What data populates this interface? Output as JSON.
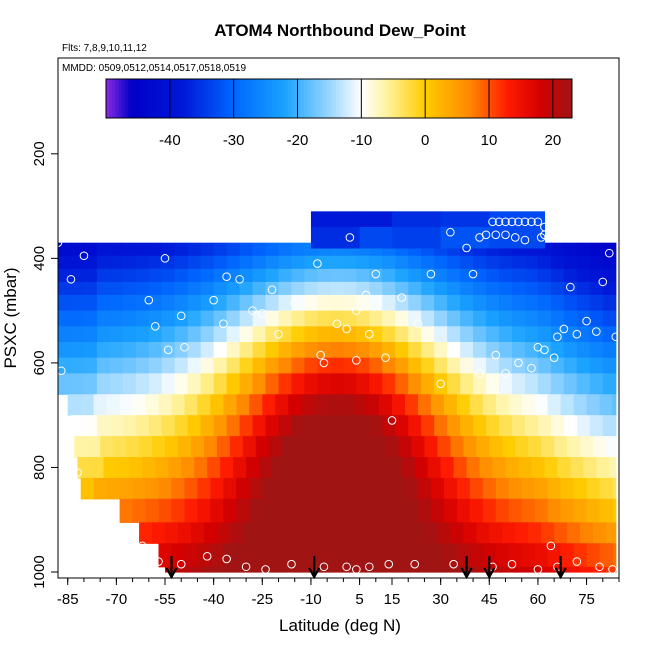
{
  "chart_data": {
    "type": "heatmap",
    "title": "ATOM4 Northbound Dew_Point",
    "flights_note": "Flts: 7,8,9,10,11,12",
    "dates_note": "MMDD: 0509,0512,0514,0517,0518,0519",
    "xlabel": "Latitude (deg N)",
    "ylabel": "PSXC (mbar)",
    "xlim": [
      -88,
      85
    ],
    "ylim": [
      1000,
      0
    ],
    "x_ticks": [
      "-85",
      "-70",
      "-55",
      "-40",
      "-25",
      "-10",
      "5",
      "15",
      "30",
      "45",
      "60",
      "75"
    ],
    "x_tick_values": [
      -85,
      -70,
      -55,
      -40,
      -25,
      -10,
      5,
      15,
      30,
      45,
      60,
      75
    ],
    "x_minor_step": 5,
    "y_ticks": [
      "200",
      "400",
      "600",
      "800",
      "1000"
    ],
    "y_tick_values": [
      200,
      400,
      600,
      800,
      1000
    ],
    "colorbar": {
      "min": -50,
      "max": 23,
      "ticks": [
        "-40",
        "-30",
        "-20",
        "-10",
        "0",
        "10",
        "20"
      ],
      "tick_values": [
        -40,
        -30,
        -20,
        -10,
        0,
        10,
        20
      ],
      "stops": [
        {
          "v": -50,
          "c": "#8a2be2"
        },
        {
          "v": -46,
          "c": "#0000c8"
        },
        {
          "v": -38,
          "c": "#0018d8"
        },
        {
          "v": -30,
          "c": "#0066ff"
        },
        {
          "v": -22,
          "c": "#1aa3ff"
        },
        {
          "v": -15,
          "c": "#99d6ff"
        },
        {
          "v": -10,
          "c": "#ffffff"
        },
        {
          "v": -6,
          "c": "#fff3a0"
        },
        {
          "v": 0,
          "c": "#ffcc00"
        },
        {
          "v": 7,
          "c": "#ff8800"
        },
        {
          "v": 13,
          "c": "#ff1a00"
        },
        {
          "v": 18,
          "c": "#d40000"
        },
        {
          "v": 23,
          "c": "#a01414"
        }
      ]
    },
    "profile_arrows_lat": [
      -53,
      -9,
      38,
      45,
      67
    ],
    "grid_cells": [
      {
        "x0": 5,
        "x1": 15,
        "p0": 310,
        "p1": 340,
        "v": -38
      },
      {
        "x0": -10,
        "x1": 5,
        "p0": 310,
        "p1": 340,
        "v": -38
      },
      {
        "x0": 15,
        "x1": 30,
        "p0": 310,
        "p1": 340,
        "v": -36
      },
      {
        "x0": 30,
        "x1": 45,
        "p0": 310,
        "p1": 340,
        "v": -35
      },
      {
        "x0": 45,
        "x1": 62,
        "p0": 310,
        "p1": 340,
        "v": -33
      },
      {
        "x0": -10,
        "x1": 5,
        "p0": 340,
        "p1": 380,
        "v": -36
      },
      {
        "x0": 5,
        "x1": 15,
        "p0": 340,
        "p1": 380,
        "v": -33
      },
      {
        "x0": 15,
        "x1": 30,
        "p0": 340,
        "p1": 380,
        "v": -34
      },
      {
        "x0": 30,
        "x1": 45,
        "p0": 340,
        "p1": 380,
        "v": -32
      },
      {
        "x0": 45,
        "x1": 62,
        "p0": 340,
        "p1": 380,
        "v": -33
      }
    ],
    "sample_points": [
      {
        "x": -88,
        "p": 370
      },
      {
        "x": -80,
        "p": 395
      },
      {
        "x": -84,
        "p": 440
      },
      {
        "x": -55,
        "p": 400
      },
      {
        "x": -60,
        "p": 480
      },
      {
        "x": -50,
        "p": 510
      },
      {
        "x": -54,
        "p": 575
      },
      {
        "x": -49,
        "p": 570
      },
      {
        "x": -58,
        "p": 530
      },
      {
        "x": -40,
        "p": 480
      },
      {
        "x": -36,
        "p": 435
      },
      {
        "x": -32,
        "p": 440
      },
      {
        "x": -37,
        "p": 525
      },
      {
        "x": -28,
        "p": 500
      },
      {
        "x": -25,
        "p": 505
      },
      {
        "x": -22,
        "p": 460
      },
      {
        "x": -20,
        "p": 545
      },
      {
        "x": -15,
        "p": 485
      },
      {
        "x": -8,
        "p": 410
      },
      {
        "x": -7,
        "p": 585
      },
      {
        "x": -6,
        "p": 600
      },
      {
        "x": -2,
        "p": 525
      },
      {
        "x": 1,
        "p": 535
      },
      {
        "x": 4,
        "p": 500
      },
      {
        "x": 7,
        "p": 470
      },
      {
        "x": 4,
        "p": 595
      },
      {
        "x": 8,
        "p": 545
      },
      {
        "x": 10,
        "p": 430
      },
      {
        "x": 2,
        "p": 360
      },
      {
        "x": 13,
        "p": 590
      },
      {
        "x": 15,
        "p": 710
      },
      {
        "x": 18,
        "p": 475
      },
      {
        "x": 23,
        "p": 525
      },
      {
        "x": 27,
        "p": 430
      },
      {
        "x": 30,
        "p": 640
      },
      {
        "x": 33,
        "p": 350
      },
      {
        "x": 38,
        "p": 380
      },
      {
        "x": 40,
        "p": 430
      },
      {
        "x": 42,
        "p": 360
      },
      {
        "x": 44,
        "p": 355
      },
      {
        "x": 46,
        "p": 330
      },
      {
        "x": 48,
        "p": 330
      },
      {
        "x": 50,
        "p": 330
      },
      {
        "x": 52,
        "p": 330
      },
      {
        "x": 54,
        "p": 330
      },
      {
        "x": 56,
        "p": 330
      },
      {
        "x": 58,
        "p": 330
      },
      {
        "x": 60,
        "p": 330
      },
      {
        "x": 62,
        "p": 340
      },
      {
        "x": 61,
        "p": 360
      },
      {
        "x": 50,
        "p": 355
      },
      {
        "x": 53,
        "p": 360
      },
      {
        "x": 47,
        "p": 355
      },
      {
        "x": 56,
        "p": 365
      },
      {
        "x": 62,
        "p": 355
      },
      {
        "x": 42,
        "p": 620
      },
      {
        "x": 47,
        "p": 585
      },
      {
        "x": 50,
        "p": 620
      },
      {
        "x": 54,
        "p": 600
      },
      {
        "x": 58,
        "p": 610
      },
      {
        "x": 60,
        "p": 570
      },
      {
        "x": 62,
        "p": 575
      },
      {
        "x": 65,
        "p": 590
      },
      {
        "x": 66,
        "p": 550
      },
      {
        "x": 68,
        "p": 535
      },
      {
        "x": 70,
        "p": 455
      },
      {
        "x": 72,
        "p": 545
      },
      {
        "x": 75,
        "p": 520
      },
      {
        "x": 78,
        "p": 540
      },
      {
        "x": 80,
        "p": 445
      },
      {
        "x": 82,
        "p": 390
      },
      {
        "x": 84,
        "p": 550
      },
      {
        "x": 87,
        "p": 545
      },
      {
        "x": -87,
        "p": 615
      },
      {
        "x": -82,
        "p": 810
      },
      {
        "x": -62,
        "p": 950
      },
      {
        "x": -57,
        "p": 980
      },
      {
        "x": -50,
        "p": 985
      },
      {
        "x": -42,
        "p": 970
      },
      {
        "x": -36,
        "p": 975
      },
      {
        "x": -30,
        "p": 990
      },
      {
        "x": -24,
        "p": 995
      },
      {
        "x": -16,
        "p": 985
      },
      {
        "x": -6,
        "p": 990
      },
      {
        "x": 1,
        "p": 990
      },
      {
        "x": 4,
        "p": 995
      },
      {
        "x": 8,
        "p": 990
      },
      {
        "x": 14,
        "p": 985
      },
      {
        "x": 22,
        "p": 985
      },
      {
        "x": 34,
        "p": 985
      },
      {
        "x": 46,
        "p": 990
      },
      {
        "x": 52,
        "p": 985
      },
      {
        "x": 60,
        "p": 995
      },
      {
        "x": 64,
        "p": 950
      },
      {
        "x": 66,
        "p": 990
      },
      {
        "x": 72,
        "p": 980
      },
      {
        "x": 79,
        "p": 990
      },
      {
        "x": 83,
        "p": 995
      }
    ]
  }
}
